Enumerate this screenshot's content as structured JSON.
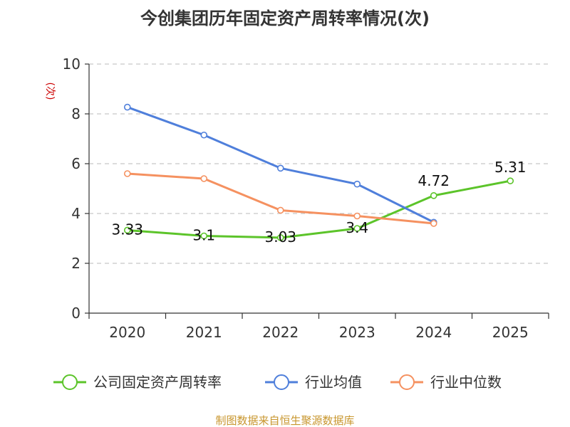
{
  "chart_data": {
    "type": "line",
    "title": "今创集团历年固定资产周转率情况(次)",
    "ylabel": "(次)",
    "xlabel": "",
    "categories": [
      "2020",
      "2021",
      "2022",
      "2023",
      "2024",
      "2025"
    ],
    "ylim": [
      0,
      10
    ],
    "yticks": [
      "0",
      "2",
      "4",
      "6",
      "8",
      "10"
    ],
    "grid": "horizontal-dashed",
    "legend_position": "bottom",
    "series": [
      {
        "name": "公司固定资产周转率",
        "color": "#5cc42a",
        "values": [
          3.33,
          3.1,
          3.03,
          3.4,
          4.72,
          5.31
        ],
        "labels": [
          "3.33",
          "3.1",
          "3.03",
          "3.4",
          "4.72",
          "5.31"
        ]
      },
      {
        "name": "行业均值",
        "color": "#4f7fdb",
        "values": [
          8.27,
          7.15,
          5.82,
          5.18,
          3.65,
          null
        ]
      },
      {
        "name": "行业中位数",
        "color": "#f59160",
        "values": [
          5.6,
          5.4,
          4.13,
          3.9,
          3.6,
          null
        ]
      }
    ],
    "source": "制图数据来自恒生聚源数据库"
  }
}
